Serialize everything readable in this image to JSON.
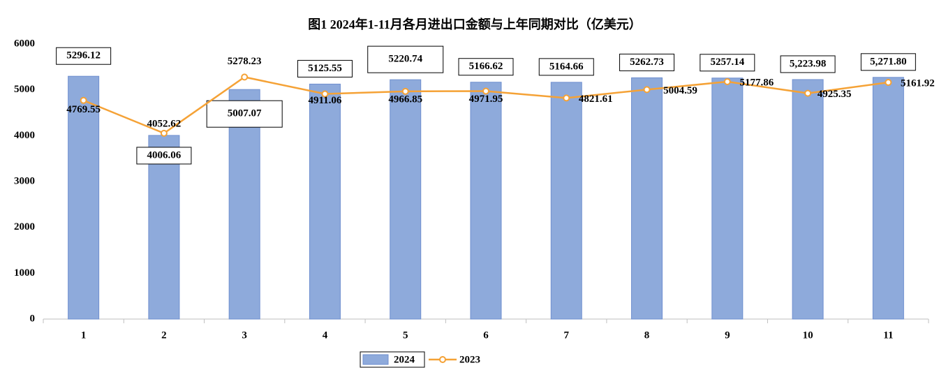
{
  "chart_data": {
    "type": "bar",
    "title": "图1 2024年1-11月各月进出口金额与上年同期对比（亿美元）",
    "categories": [
      "1",
      "2",
      "3",
      "4",
      "5",
      "6",
      "7",
      "8",
      "9",
      "10",
      "11"
    ],
    "series": [
      {
        "name": "2024",
        "type": "bar",
        "color": "#8eaadb",
        "values": [
          5296.12,
          4006.06,
          5007.07,
          5125.55,
          5220.74,
          5166.62,
          5164.66,
          5262.73,
          5257.14,
          5223.98,
          5271.8
        ],
        "value_labels": [
          "5296.12",
          "4006.06",
          "5007.07",
          "5125.55",
          "5220.74",
          "5166.62",
          "5164.66",
          "5262.73",
          "5257.14",
          "5,223.98",
          "5,271.80"
        ]
      },
      {
        "name": "2023",
        "type": "line",
        "color": "#f5a236",
        "values": [
          4769.55,
          4052.62,
          5278.23,
          4911.06,
          4966.85,
          4971.95,
          4821.61,
          5004.59,
          5177.86,
          4925.35,
          5161.92
        ],
        "value_labels": [
          "4769.55",
          "4052.62",
          "5278.23",
          "4911.06",
          "4966.85",
          "4971.95",
          "4821.61",
          "5004.59",
          "5177.86",
          "4925.35",
          "5161.92"
        ]
      }
    ],
    "ylim": [
      0,
      6000
    ],
    "yticks": [
      0,
      1000,
      2000,
      3000,
      4000,
      5000,
      6000
    ],
    "grid": false,
    "legend": "bottom"
  }
}
